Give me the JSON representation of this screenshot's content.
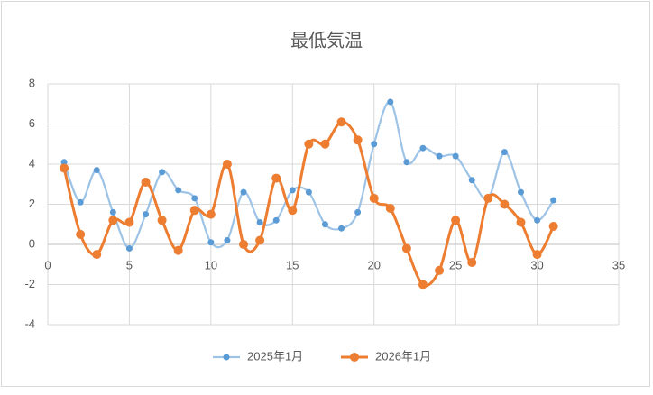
{
  "chart_data": {
    "type": "scatter-smooth",
    "title": "最低気温",
    "x": [
      1,
      2,
      3,
      4,
      5,
      6,
      7,
      8,
      9,
      10,
      11,
      12,
      13,
      14,
      15,
      16,
      17,
      18,
      19,
      20,
      21,
      22,
      23,
      24,
      25,
      26,
      27,
      28,
      29,
      30,
      31
    ],
    "series": [
      {
        "name": "2025年1月",
        "color": "#5b9bd5",
        "line_color": "#9dc3e6",
        "values": [
          4.1,
          2.1,
          3.7,
          1.6,
          -0.2,
          1.5,
          3.6,
          2.7,
          2.3,
          0.1,
          0.2,
          2.6,
          1.1,
          1.2,
          2.7,
          2.6,
          1.0,
          0.8,
          1.6,
          5.0,
          7.1,
          4.1,
          4.8,
          4.4,
          4.4,
          3.2,
          2.3,
          4.6,
          2.6,
          1.2,
          2.2
        ]
      },
      {
        "name": "2026年1月",
        "color": "#ed7d31",
        "line_color": "#ed7d31",
        "values": [
          3.8,
          0.5,
          -0.5,
          1.2,
          1.1,
          3.1,
          1.2,
          -0.3,
          1.7,
          1.5,
          4.0,
          0.0,
          0.2,
          3.3,
          1.7,
          5.0,
          5.0,
          6.1,
          5.2,
          2.3,
          1.8,
          -0.2,
          -2.0,
          -1.3,
          1.2,
          -0.9,
          2.3,
          2.0,
          1.1,
          -0.5,
          0.9
        ]
      }
    ],
    "xlim": [
      0,
      35
    ],
    "xticks": [
      0,
      5,
      10,
      15,
      20,
      25,
      30,
      35
    ],
    "ylim": [
      -4,
      8
    ],
    "yticks": [
      -4,
      -2,
      0,
      2,
      4,
      6,
      8
    ],
    "grid": true,
    "legend": "bottom"
  }
}
